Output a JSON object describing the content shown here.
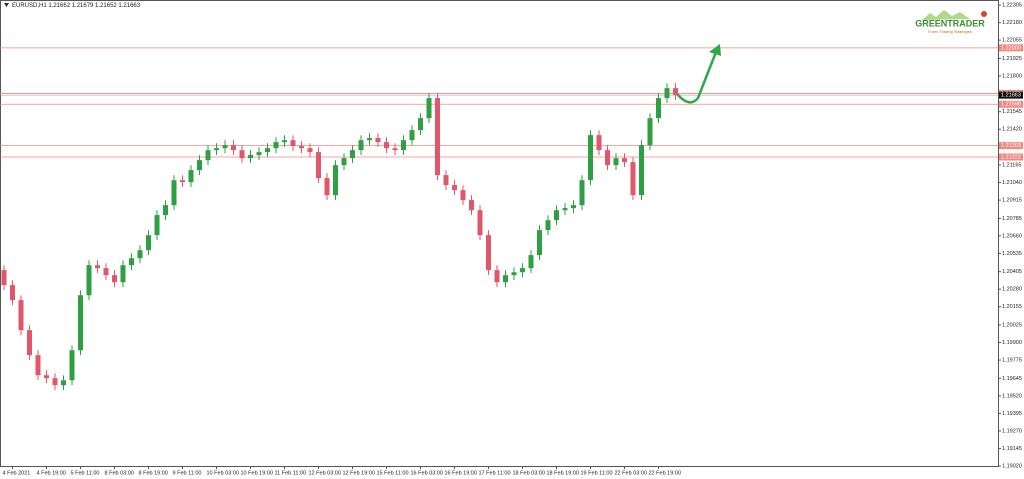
{
  "chart_data": {
    "type": "candlestick",
    "title": "EURUSD,H1  1.21662 1.21679 1.21652 1.21663",
    "categories": [
      null,
      "4 Feb 2021",
      null,
      null,
      null,
      "4 Feb 19:00",
      null,
      null,
      null,
      "5 Feb 11:00",
      null,
      null,
      null,
      "8 Feb 03:00",
      null,
      null,
      null,
      "8 Feb 19:00",
      null,
      null,
      null,
      "9 Feb 11:00",
      null,
      null,
      null,
      "10 Feb 03:00",
      null,
      null,
      null,
      "10 Feb 19:00",
      null,
      null,
      null,
      "11 Feb 11:00",
      null,
      null,
      null,
      "12 Feb 03:00",
      null,
      null,
      null,
      "12 Feb 19:00",
      null,
      null,
      null,
      "15 Feb 11:00",
      null,
      null,
      null,
      "16 Feb 03:00",
      null,
      null,
      null,
      "16 Feb 19:00",
      null,
      null,
      null,
      "17 Feb 11:00",
      null,
      null,
      null,
      "18 Feb 03:00",
      null,
      null,
      null,
      "18 Feb 19:00",
      null,
      null,
      null,
      "19 Feb 11:00",
      null,
      null,
      null,
      "22 Feb 03:00",
      null,
      null,
      null,
      "22 Feb 19:00",
      null,
      null
    ],
    "open": [
      1.20416,
      1.20309,
      1.20202,
      1.19988,
      1.1981,
      1.19667,
      1.19646,
      1.19596,
      1.19631,
      1.19845,
      1.20237,
      1.20451,
      1.2043,
      1.2038,
      1.2033,
      1.20451,
      1.20501,
      1.20558,
      1.20665,
      1.20808,
      1.20879,
      1.21057,
      1.21043,
      1.21129,
      1.212,
      1.21271,
      1.21285,
      1.21307,
      1.21271,
      1.21214,
      1.21236,
      1.21257,
      1.21285,
      1.21328,
      1.21342,
      1.213,
      1.21285,
      1.21257,
      1.21072,
      1.2095,
      1.21164,
      1.21214,
      1.21271,
      1.21342,
      1.21357,
      1.21328,
      1.21285,
      1.21271,
      1.21342,
      1.21414,
      1.21499,
      1.21642,
      1.21093,
      1.21022,
      1.20986,
      1.20915,
      1.20843,
      1.20665,
      1.20416,
      1.2033,
      1.2038,
      1.20401,
      1.2043,
      1.20523,
      1.20701,
      1.20772,
      1.20843,
      1.20858,
      1.20879,
      1.21057,
      1.21378,
      1.21271,
      1.21164,
      1.21214,
      1.21186,
      1.2095,
      1.21307,
      1.21499,
      1.21642,
      1.21713
    ],
    "high": [
      1.20451,
      1.20344,
      1.20237,
      1.20023,
      1.19845,
      1.19702,
      1.19681,
      1.19666,
      1.1988,
      1.20272,
      1.20486,
      1.20486,
      1.20465,
      1.20415,
      1.20486,
      1.20536,
      1.20593,
      1.207,
      1.20843,
      1.20914,
      1.21092,
      1.21092,
      1.21164,
      1.21235,
      1.21306,
      1.2132,
      1.21342,
      1.21342,
      1.21306,
      1.21271,
      1.21292,
      1.2132,
      1.21363,
      1.21377,
      1.21377,
      1.21335,
      1.2132,
      1.21292,
      1.21107,
      1.21199,
      1.21249,
      1.21306,
      1.21377,
      1.21392,
      1.21392,
      1.21363,
      1.2132,
      1.21377,
      1.21449,
      1.21534,
      1.21677,
      1.21677,
      1.21128,
      1.21057,
      1.21021,
      1.2095,
      1.20878,
      1.207,
      1.20451,
      1.20415,
      1.20436,
      1.20465,
      1.20558,
      1.20736,
      1.20807,
      1.20878,
      1.20893,
      1.20914,
      1.21092,
      1.21413,
      1.21413,
      1.21306,
      1.21249,
      1.21249,
      1.21221,
      1.21342,
      1.21534,
      1.21677,
      1.21748,
      1.21748
    ],
    "low": [
      1.20274,
      1.20167,
      1.19953,
      1.19775,
      1.19632,
      1.19611,
      1.19561,
      1.19561,
      1.19596,
      1.1981,
      1.20202,
      1.20395,
      1.20345,
      1.20295,
      1.20295,
      1.20416,
      1.20466,
      1.20523,
      1.2063,
      1.20773,
      1.20844,
      1.21008,
      1.21008,
      1.21094,
      1.21165,
      1.21236,
      1.2125,
      1.21236,
      1.21179,
      1.21179,
      1.21201,
      1.21222,
      1.2125,
      1.21293,
      1.21265,
      1.2125,
      1.21222,
      1.21037,
      1.20915,
      1.20915,
      1.21129,
      1.21179,
      1.21236,
      1.21307,
      1.21293,
      1.2125,
      1.21236,
      1.21236,
      1.21307,
      1.21379,
      1.21464,
      1.21058,
      1.20987,
      1.20951,
      1.2088,
      1.20808,
      1.2063,
      1.20381,
      1.20295,
      1.20295,
      1.20345,
      1.20366,
      1.20395,
      1.20488,
      1.20666,
      1.20737,
      1.20808,
      1.20823,
      1.20844,
      1.21022,
      1.21236,
      1.21129,
      1.21129,
      1.21151,
      1.20915,
      1.20915,
      1.21272,
      1.21464,
      1.21607,
      1.21628
    ],
    "close": [
      1.20309,
      1.20202,
      1.19988,
      1.1981,
      1.19667,
      1.19646,
      1.19596,
      1.19631,
      1.19845,
      1.20237,
      1.20451,
      1.2043,
      1.2038,
      1.2033,
      1.20451,
      1.20501,
      1.20558,
      1.20665,
      1.20808,
      1.20879,
      1.21057,
      1.21043,
      1.21129,
      1.212,
      1.21271,
      1.21285,
      1.21307,
      1.21271,
      1.21214,
      1.21236,
      1.21257,
      1.21285,
      1.21328,
      1.21342,
      1.213,
      1.21285,
      1.21257,
      1.21072,
      1.2095,
      1.21164,
      1.21214,
      1.21271,
      1.21342,
      1.21357,
      1.21328,
      1.21285,
      1.21271,
      1.21342,
      1.21414,
      1.21499,
      1.21642,
      1.21093,
      1.21022,
      1.20986,
      1.20915,
      1.20843,
      1.20665,
      1.20416,
      1.2033,
      1.2038,
      1.20401,
      1.2043,
      1.20523,
      1.20701,
      1.20772,
      1.20843,
      1.20858,
      1.20879,
      1.21057,
      1.21378,
      1.21271,
      1.21164,
      1.21214,
      1.21186,
      1.2095,
      1.21307,
      1.21499,
      1.21642,
      1.21713,
      1.21663
    ],
    "up_color": "#2ea043",
    "down_color": "#e0566a",
    "ylim": [
      1.1902,
      1.22341
    ],
    "yticks": [
      1.22305,
      {
        "value": 1.2218,
        "label": "1.22180"
      },
      1.22055,
      1.21925,
      {
        "value": 1.218,
        "label": "1.21800"
      },
      1.21545,
      {
        "value": 1.2142,
        "label": "1.21420"
      },
      {
        "value": 1.2129,
        "label": "1.21290"
      },
      1.21165,
      {
        "value": 1.2104,
        "label": "1.21040"
      },
      1.20915,
      1.20785,
      {
        "value": 1.2066,
        "label": "1.20660"
      },
      1.20535,
      1.20405,
      {
        "value": 1.2028,
        "label": "1.20280"
      },
      1.20155,
      1.20025,
      {
        "value": 1.199,
        "label": "1.19900"
      },
      1.19775,
      1.19645,
      {
        "value": 1.1952,
        "label": "1.19520"
      },
      1.19395,
      {
        "value": 1.1927,
        "label": "1.19270"
      },
      1.19145,
      {
        "value": 1.1902,
        "label": "1.19020"
      }
    ],
    "levels": [
      {
        "value": 1.22,
        "label": "1.22000"
      },
      1.21675,
      1.21598,
      1.21303,
      1.21222
    ],
    "level_color": "#f08a80",
    "current_price": 1.21663
  },
  "logo": {
    "title": "GREENTRADER",
    "subtitle": "Forex Trading Strategies"
  }
}
